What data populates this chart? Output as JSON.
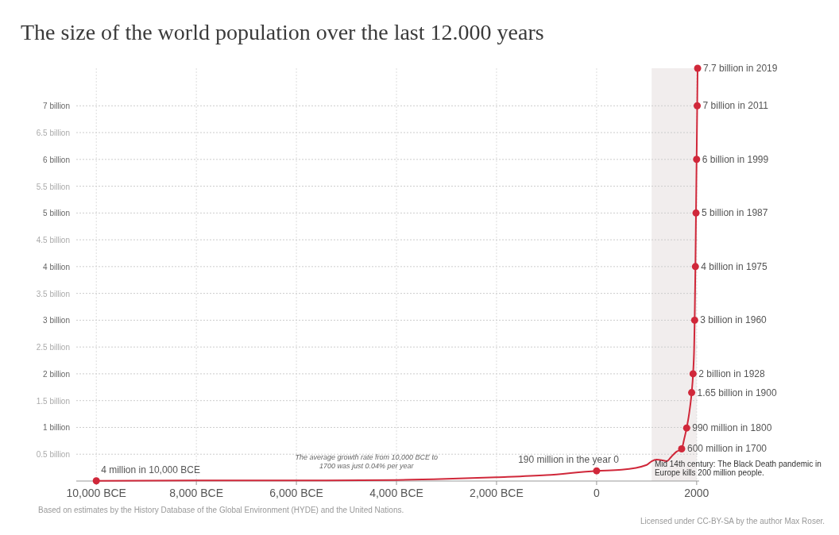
{
  "chart_data": {
    "type": "line",
    "title": "The size of the world population over the last 12.000 years",
    "xlim": [
      -10400,
      2050
    ],
    "ylim": [
      0,
      7.7
    ],
    "xticks": [
      {
        "value": -10000,
        "label": "10,000 BCE"
      },
      {
        "value": -8000,
        "label": "8,000 BCE"
      },
      {
        "value": -6000,
        "label": "6,000 BCE"
      },
      {
        "value": -4000,
        "label": "4,000 BCE"
      },
      {
        "value": -2000,
        "label": "2,000 BCE"
      },
      0,
      2000
    ],
    "yticks": [
      {
        "value": 0.5,
        "label": "0.5 billion"
      },
      {
        "value": 1,
        "label": "1 billion"
      },
      {
        "value": 1.5,
        "label": "1.5 billion"
      },
      {
        "value": 2,
        "label": "2 billion"
      },
      {
        "value": 2.5,
        "label": "2.5 billion"
      },
      {
        "value": 3,
        "label": "3 billion"
      },
      {
        "value": 3.5,
        "label": "3.5 billion"
      },
      {
        "value": 4,
        "label": "4 billion"
      },
      {
        "value": 4.5,
        "label": "4.5 billion"
      },
      {
        "value": 5,
        "label": "5 billion"
      },
      {
        "value": 5.5,
        "label": "5.5 billion"
      },
      {
        "value": 6,
        "label": "6 billion"
      },
      {
        "value": 6.5,
        "label": "6.5 billion"
      },
      {
        "value": 7,
        "label": "7 billion"
      }
    ],
    "grid": true,
    "bands": [
      {
        "axis": "x",
        "from": 1100,
        "to": 2000,
        "color": "#f1eded"
      }
    ],
    "series": [
      {
        "color": "#d0283a",
        "marker": "none",
        "x": [
          -10000,
          -8000,
          -6000,
          -4000,
          -3000,
          -2000,
          -1000,
          0,
          500,
          1000,
          1100,
          1200,
          1300,
          1400,
          1500,
          1600,
          1700,
          1750,
          1800,
          1850,
          1900,
          1928,
          1950,
          1960,
          1975,
          1987,
          1999,
          2011,
          2019
        ],
        "values": [
          0.004,
          0.01,
          0.01,
          0.02,
          0.04,
          0.07,
          0.11,
          0.19,
          0.21,
          0.3,
          0.37,
          0.4,
          0.39,
          0.37,
          0.46,
          0.55,
          0.6,
          0.78,
          0.99,
          1.26,
          1.65,
          2,
          2.5,
          3,
          4,
          5,
          6,
          7,
          7.7
        ]
      },
      {
        "type": "scatter",
        "color": "#d0283a",
        "marker": "circle",
        "x": [
          -10000,
          0,
          1700,
          1800,
          1900,
          1928,
          1960,
          1975,
          1987,
          1999,
          2011,
          2019
        ],
        "values": [
          0.004,
          0.19,
          0.6,
          0.99,
          1.65,
          2,
          3,
          4,
          5,
          6,
          7,
          7.7
        ],
        "value_labels": [
          "4 million in 10,000 BCE",
          "190 million in the year 0",
          "600 million in 1700",
          "990 million in 1800",
          "1.65 billion in 1900",
          "2 billion in 1928",
          "3 billion in 1960",
          "4 billion in 1975",
          "5 billion in 1987",
          "6 billion in 1999",
          "7 billion in 2011",
          "7.7 billion in 2019"
        ]
      }
    ],
    "annotations": [
      {
        "text": "The average growth rate from 10,000 BCE to 1700 was just 0.04% per year",
        "x": -4600,
        "y": 0.1
      },
      {
        "text": "Mid 14th century: The Black Death pandemic in Europe kills 200 million people.",
        "x": 1350,
        "y": 0.39
      },
      "Based on estimates by the History Database of the Global Environment (HYDE) and the United Nations.",
      "Licensed under CC-BY-SA by the author Max Roser."
    ]
  }
}
